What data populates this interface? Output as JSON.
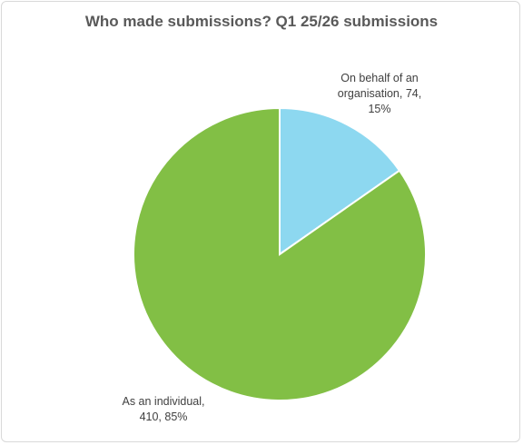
{
  "chart_data": {
    "type": "pie",
    "title": "Who made submissions? Q1 25/26 submissions",
    "slices": [
      {
        "name": "On behalf of an organisation",
        "value": 74,
        "percent": 15,
        "color": "#8dd8f0",
        "label_lines": [
          "On behalf of an",
          "organisation, 74,",
          "15%"
        ]
      },
      {
        "name": "As an individual",
        "value": 410,
        "percent": 85,
        "color": "#82bf45",
        "label_lines": [
          "As an individual,",
          "410, 85%"
        ]
      }
    ],
    "legend": "none"
  }
}
